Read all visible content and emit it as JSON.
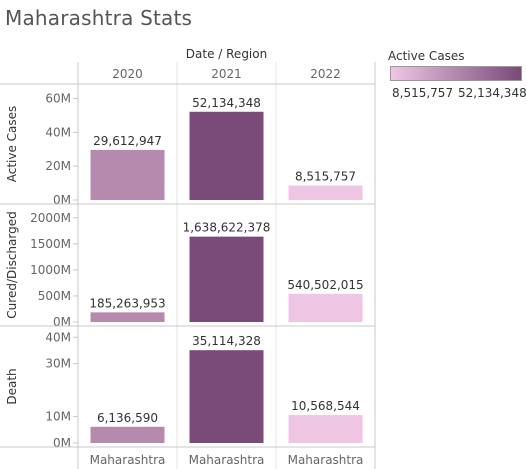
{
  "title": "Maharashtra Stats",
  "colors": {
    "low": "#eec6e3",
    "high": "#7a4a78",
    "grid": "#c8c8c8",
    "tick": "#e6e6e6",
    "axis_text": "#666666",
    "label_text": "#333333"
  },
  "legend": {
    "title": "Active Cases",
    "min_label": "8,515,757",
    "max_label": "52,134,348"
  },
  "chart_data": {
    "type": "bar",
    "title": "Maharashtra Stats",
    "column_header": "Date  /  Region",
    "years": [
      "2020",
      "2021",
      "2022"
    ],
    "region_labels": [
      "Maharashtra",
      "Maharashtra",
      "Maharashtra"
    ],
    "color_measure": "Active Cases",
    "color_values": [
      29612947,
      52134348,
      8515757
    ],
    "rows": [
      {
        "name": "Active Cases",
        "values": [
          29612947,
          52134348,
          8515757
        ],
        "value_labels": [
          "29,612,947",
          "52,134,348",
          "8,515,757"
        ],
        "ticks": [
          0,
          20000000,
          40000000,
          60000000
        ],
        "tick_labels": [
          "0M",
          "20M",
          "40M",
          "60M"
        ],
        "ylim": [
          0,
          65000000
        ]
      },
      {
        "name": "Cured/Discharged",
        "values": [
          185263953,
          1638622378,
          540502015
        ],
        "value_labels": [
          "185,263,953",
          "1,638,622,378",
          "540,502,015"
        ],
        "ticks": [
          0,
          500000000,
          1000000000,
          1500000000,
          2000000000
        ],
        "tick_labels": [
          "0M",
          "500M",
          "1000M",
          "1500M",
          "2000M"
        ],
        "ylim": [
          0,
          2150000000
        ]
      },
      {
        "name": "Death",
        "values": [
          6136590,
          35114328,
          10568544
        ],
        "value_labels": [
          "6,136,590",
          "35,114,328",
          "10,568,544"
        ],
        "ticks": [
          0,
          10000000,
          30000000,
          40000000
        ],
        "tick_labels": [
          "0M",
          "10M",
          "30M",
          "40M"
        ],
        "ylim": [
          0,
          42000000
        ]
      }
    ]
  }
}
